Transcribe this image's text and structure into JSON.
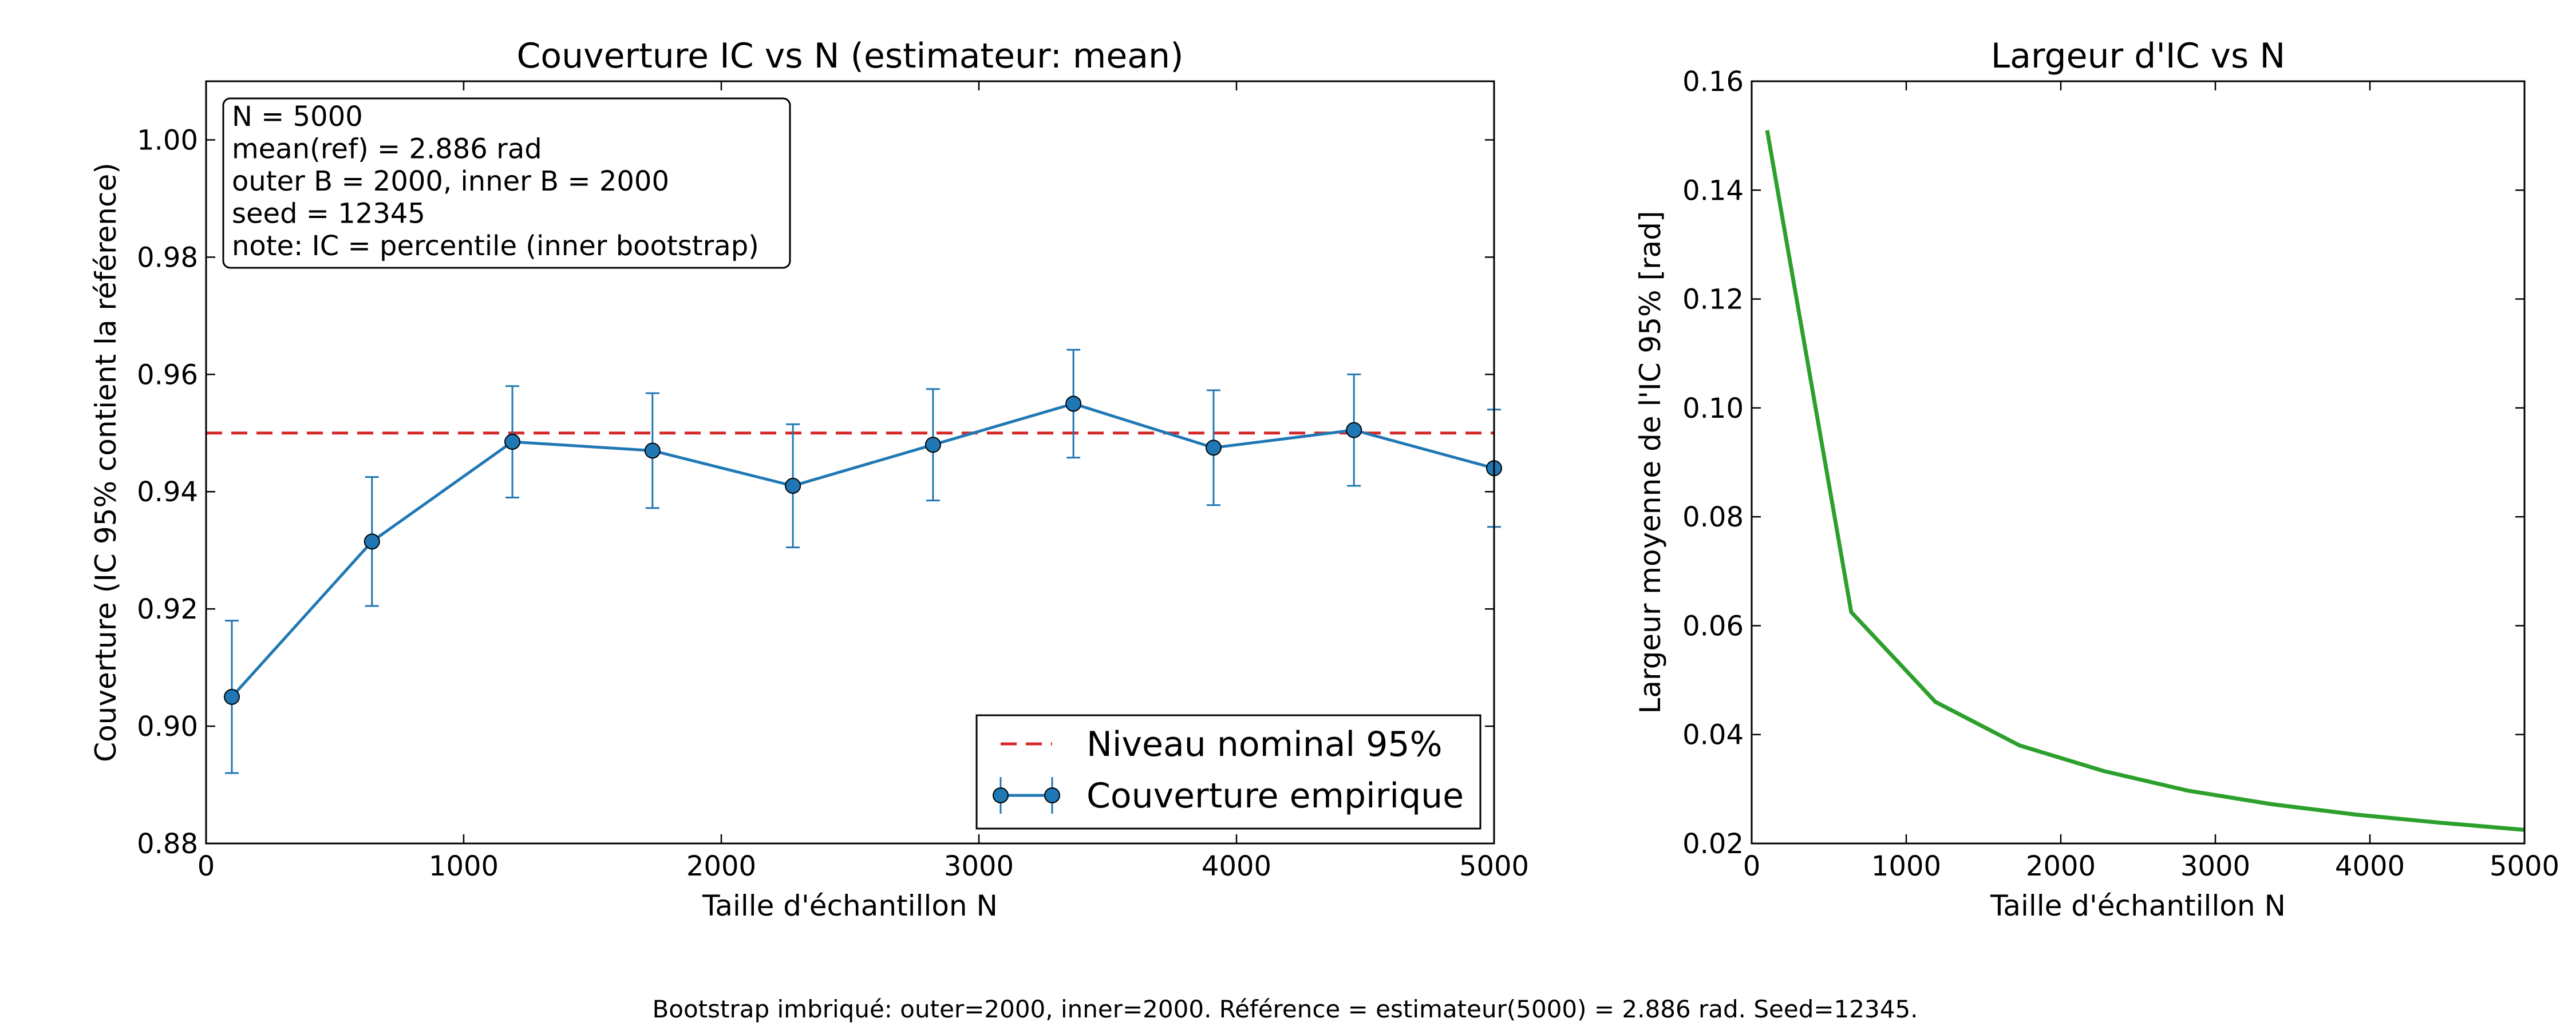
{
  "footer": "Bootstrap imbriqué: outer=2000, inner=2000. Référence = estimateur(5000) = 2.886 rad. Seed=12345.",
  "chart_data": [
    {
      "type": "line",
      "title": "Couverture IC vs N (estimateur: mean)",
      "xlabel": "Taille d'échantillon N",
      "ylabel": "Couverture (IC 95% contient la référence)",
      "xlim": [
        0,
        5000
      ],
      "ylim": [
        0.88,
        1.01
      ],
      "xticks": [
        0,
        1000,
        2000,
        3000,
        4000,
        5000
      ],
      "yticks": [
        0.88,
        0.9,
        0.92,
        0.94,
        0.96,
        0.98,
        1.0
      ],
      "grid": false,
      "legend_position": "bottom-right",
      "annotation": [
        "N = 5000",
        "mean(ref) = 2.886 rad",
        "outer B = 2000, inner B = 2000",
        "seed = 12345",
        "note: IC = percentile (inner bootstrap)"
      ],
      "reference_line": {
        "name": "Niveau nominal 95%",
        "y": 0.95,
        "color": "#d62728",
        "style": "dashed"
      },
      "series": [
        {
          "name": "Couverture empirique",
          "color": "#1f77b4",
          "x": [
            100,
            644,
            1189,
            1733,
            2278,
            2822,
            3367,
            3911,
            4456,
            5000
          ],
          "y": [
            0.905,
            0.9315,
            0.9485,
            0.947,
            0.941,
            0.948,
            0.955,
            0.9475,
            0.9505,
            0.944
          ],
          "err": [
            0.013,
            0.011,
            0.0095,
            0.0098,
            0.0105,
            0.0095,
            0.0092,
            0.0098,
            0.0095,
            0.01
          ]
        }
      ]
    },
    {
      "type": "line",
      "title": "Largeur d'IC vs N",
      "xlabel": "Taille d'échantillon N",
      "ylabel": "Largeur moyenne de l'IC 95% [rad]",
      "xlim": [
        0,
        5000
      ],
      "ylim": [
        0.02,
        0.16
      ],
      "xticks": [
        0,
        1000,
        2000,
        3000,
        4000,
        5000
      ],
      "yticks": [
        0.02,
        0.04,
        0.06,
        0.08,
        0.1,
        0.12,
        0.14,
        0.16
      ],
      "grid": false,
      "series": [
        {
          "color": "#2ca02c",
          "x": [
            100,
            644,
            1189,
            1733,
            2278,
            2822,
            3367,
            3911,
            4456,
            5000
          ],
          "y": [
            0.151,
            0.0625,
            0.046,
            0.038,
            0.0333,
            0.0297,
            0.0272,
            0.0253,
            0.0238,
            0.0225
          ]
        }
      ]
    }
  ]
}
